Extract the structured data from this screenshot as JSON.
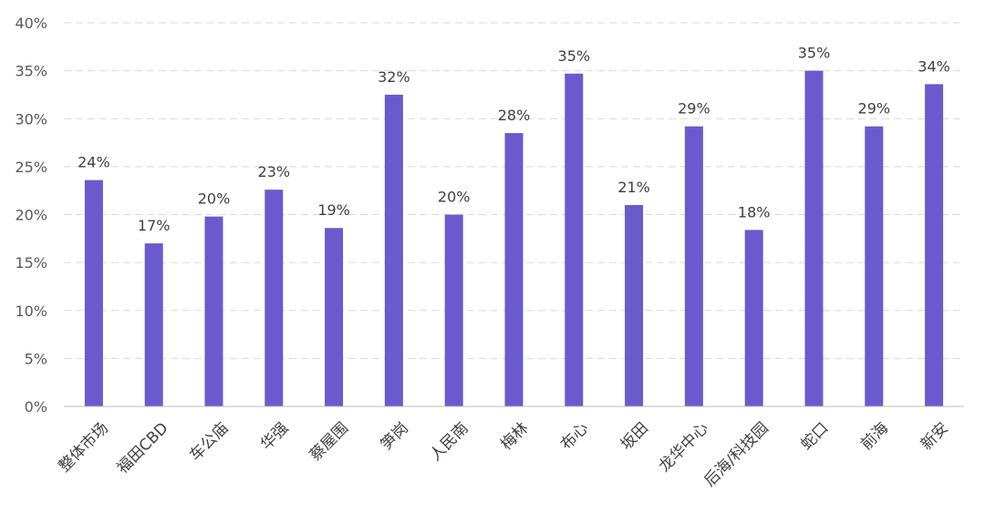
{
  "chart_data": {
    "type": "bar",
    "title": "",
    "xlabel": "",
    "ylabel": "",
    "ylim": [
      0,
      0.4
    ],
    "yticks": [
      "0%",
      "5%",
      "10%",
      "15%",
      "20%",
      "25%",
      "30%",
      "35%",
      "40%"
    ],
    "grid": true,
    "legend": "none",
    "categories": [
      "整体市场",
      "福田CBD",
      "车公庙",
      "华强",
      "蔡屋围",
      "笋岗",
      "人民南",
      "梅林",
      "布心",
      "坂田",
      "龙华中心",
      "后海/科技园",
      "蛇口",
      "前海",
      "新安"
    ],
    "values": [
      0.236,
      0.17,
      0.198,
      0.226,
      0.186,
      0.325,
      0.2,
      0.285,
      0.347,
      0.21,
      0.292,
      0.184,
      0.35,
      0.292,
      0.336
    ],
    "labels": [
      "24%",
      "17%",
      "20%",
      "23%",
      "19%",
      "32%",
      "20%",
      "28%",
      "35%",
      "21%",
      "29%",
      "18%",
      "35%",
      "29%",
      "34%"
    ],
    "colors": {
      "bar": "#6A5ACD",
      "grid": "#d9d9d9"
    }
  }
}
